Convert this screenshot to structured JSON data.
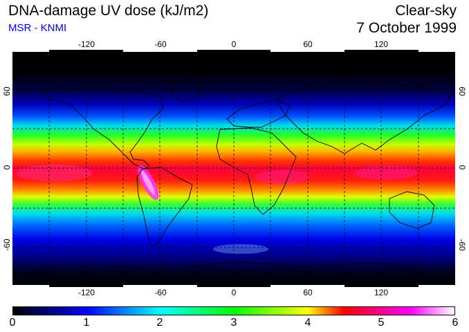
{
  "header": {
    "title": "DNA-damage UV dose (kJ/m2)",
    "credit": "MSR - KNMI",
    "condition": "Clear-sky",
    "date": "7 October 1999"
  },
  "map": {
    "lon_ticks": [
      -120,
      -60,
      0,
      60,
      120
    ],
    "lat_ticks": [
      60,
      0,
      -60
    ],
    "lon_labels": [
      "-120",
      "-60",
      "0",
      "60",
      "120"
    ],
    "lat_labels": [
      "60",
      "0",
      "-60"
    ],
    "lon_range": [
      -180,
      180
    ],
    "lat_range": [
      -90,
      90
    ],
    "gridlines": "dashed every 30°"
  },
  "colorbar": {
    "min": 0,
    "max": 6,
    "ticks": [
      "0",
      "1",
      "2",
      "3",
      "4",
      "5",
      "6"
    ],
    "colors": [
      "#000000",
      "#0000ff",
      "#00ffff",
      "#00ff00",
      "#ffff00",
      "#ff0000",
      "#ff00ff",
      "#ffffff"
    ]
  }
}
